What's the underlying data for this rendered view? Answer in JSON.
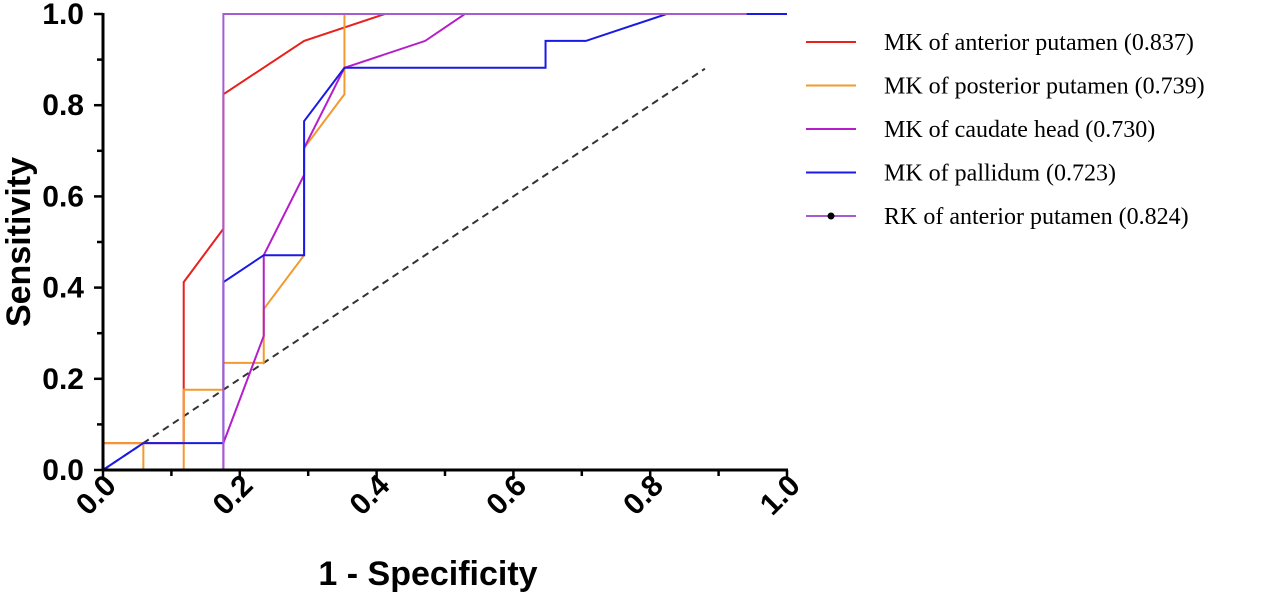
{
  "chart_data": {
    "type": "line",
    "xlabel": "1 - Specificity",
    "ylabel": "Sensitivity",
    "xlim": [
      0.0,
      1.0
    ],
    "ylim": [
      0.0,
      1.0
    ],
    "x_ticks": [
      0.0,
      0.2,
      0.4,
      0.6,
      0.8,
      1.0
    ],
    "y_ticks": [
      0.0,
      0.2,
      0.4,
      0.6,
      0.8,
      1.0
    ],
    "x_tick_labels": [
      "0.0",
      "0.2",
      "0.4",
      "0.6",
      "0.8",
      "1.0"
    ],
    "y_tick_labels": [
      "0.0",
      "0.2",
      "0.4",
      "0.6",
      "0.8",
      "1.0"
    ],
    "grid": false,
    "legend_position": "right",
    "reference_line": {
      "style": "dashed",
      "color": "#333333",
      "points": [
        [
          0.0,
          0.0
        ],
        [
          0.88,
          0.88
        ]
      ]
    },
    "series": [
      {
        "name": "MK of anterior putamen (0.837)",
        "color": "#e8211c",
        "marker": "none",
        "points": [
          [
            0.0,
            0.059
          ],
          [
            0.118,
            0.059
          ],
          [
            0.118,
            0.412
          ],
          [
            0.176,
            0.529
          ],
          [
            0.176,
            0.824
          ],
          [
            0.294,
            0.941
          ],
          [
            0.412,
            1.0
          ],
          [
            1.0,
            1.0
          ]
        ]
      },
      {
        "name": "MK of posterior putamen (0.739)",
        "color": "#f29a2e",
        "marker": "none",
        "points": [
          [
            0.0,
            0.059
          ],
          [
            0.059,
            0.059
          ],
          [
            0.059,
            0.0
          ],
          [
            0.118,
            0.0
          ],
          [
            0.118,
            0.176
          ],
          [
            0.176,
            0.176
          ],
          [
            0.176,
            0.235
          ],
          [
            0.235,
            0.235
          ],
          [
            0.235,
            0.353
          ],
          [
            0.294,
            0.471
          ],
          [
            0.294,
            0.706
          ],
          [
            0.353,
            0.824
          ],
          [
            0.353,
            1.0
          ],
          [
            1.0,
            1.0
          ]
        ]
      },
      {
        "name": "MK of caudate head (0.730)",
        "color": "#b51fc9",
        "marker": "none",
        "points": [
          [
            0.0,
            0.0
          ],
          [
            0.176,
            0.0
          ],
          [
            0.176,
            0.059
          ],
          [
            0.235,
            0.294
          ],
          [
            0.235,
            0.471
          ],
          [
            0.294,
            0.647
          ],
          [
            0.294,
            0.706
          ],
          [
            0.353,
            0.882
          ],
          [
            0.471,
            0.941
          ],
          [
            0.529,
            1.0
          ],
          [
            1.0,
            1.0
          ]
        ]
      },
      {
        "name": "MK of pallidum (0.723)",
        "color": "#1a1ae6",
        "marker": "none",
        "points": [
          [
            0.0,
            0.0
          ],
          [
            0.059,
            0.059
          ],
          [
            0.176,
            0.059
          ],
          [
            0.176,
            0.412
          ],
          [
            0.235,
            0.471
          ],
          [
            0.294,
            0.471
          ],
          [
            0.294,
            0.765
          ],
          [
            0.353,
            0.882
          ],
          [
            0.647,
            0.882
          ],
          [
            0.647,
            0.941
          ],
          [
            0.706,
            0.941
          ],
          [
            0.824,
            1.0
          ],
          [
            1.0,
            1.0
          ]
        ]
      },
      {
        "name": "RK of anterior putamen (0.824)",
        "color": "#a75bd1",
        "marker": "dot",
        "points": [
          [
            0.0,
            0.0
          ],
          [
            0.176,
            0.0
          ],
          [
            0.176,
            1.0
          ],
          [
            0.941,
            1.0
          ]
        ]
      }
    ]
  }
}
